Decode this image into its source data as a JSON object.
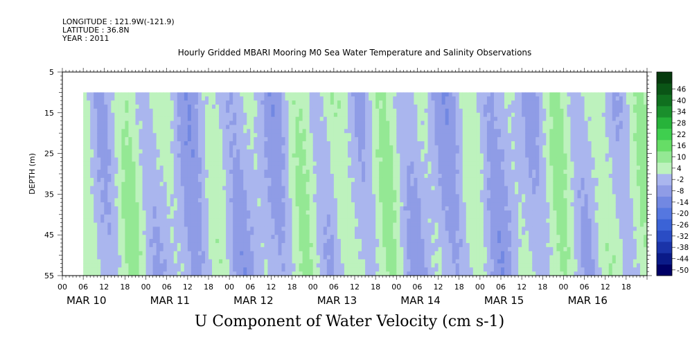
{
  "header": {
    "longitude": "LONGITUDE : 121.9W(-121.9)",
    "latitude": "LATITUDE : 36.8N",
    "year": "YEAR : 2011"
  },
  "title": "Hourly Gridded MBARI Mooring M0 Sea Water Temperature and Salinity Observations",
  "bottom_title": "U Component of Water Velocity (cm s-1)",
  "chart_data": {
    "type": "heatmap",
    "title": "Hourly Gridded MBARI Mooring M0 Sea Water Temperature and Salinity Observations",
    "variable": "U Component of Water Velocity (cm s-1)",
    "ylabel": "DEPTH (m)",
    "y_ticks": [
      5,
      15,
      25,
      35,
      45,
      55
    ],
    "ylim": [
      5,
      55
    ],
    "y_inverted": true,
    "x_days": [
      "MAR 10",
      "MAR 11",
      "MAR 12",
      "MAR 13",
      "MAR 14",
      "MAR 15",
      "MAR 16"
    ],
    "x_hour_ticks": [
      "00",
      "06",
      "12",
      "18"
    ],
    "x_range": [
      "2011-03-10 00:00",
      "2011-03-16 23:00"
    ],
    "data_start": "2011-03-10 06:00",
    "data_depth_range": [
      10,
      55
    ],
    "colorbar": {
      "levels": [
        -50,
        -44,
        -38,
        -32,
        -26,
        -20,
        -14,
        -8,
        -2,
        4,
        10,
        16,
        22,
        28,
        34,
        40,
        46
      ],
      "tick_labels": [
        "46",
        "40",
        "34",
        "28",
        "22",
        "16",
        "10",
        "4",
        "-2",
        "-8",
        "-14",
        "-20",
        "-26",
        "-32",
        "-38",
        "-44",
        "-50"
      ],
      "colors_low_to_high": [
        "#000066",
        "#0a1a88",
        "#1a33a8",
        "#2a4cc4",
        "#3b63d6",
        "#5577e0",
        "#7288e2",
        "#8f9ce6",
        "#aab6ee",
        "#bdf2bd",
        "#94e894",
        "#66dd66",
        "#3fcf4f",
        "#27b33a",
        "#1a8f2c",
        "#10701f",
        "#0a5516",
        "#063a0e"
      ]
    }
  }
}
